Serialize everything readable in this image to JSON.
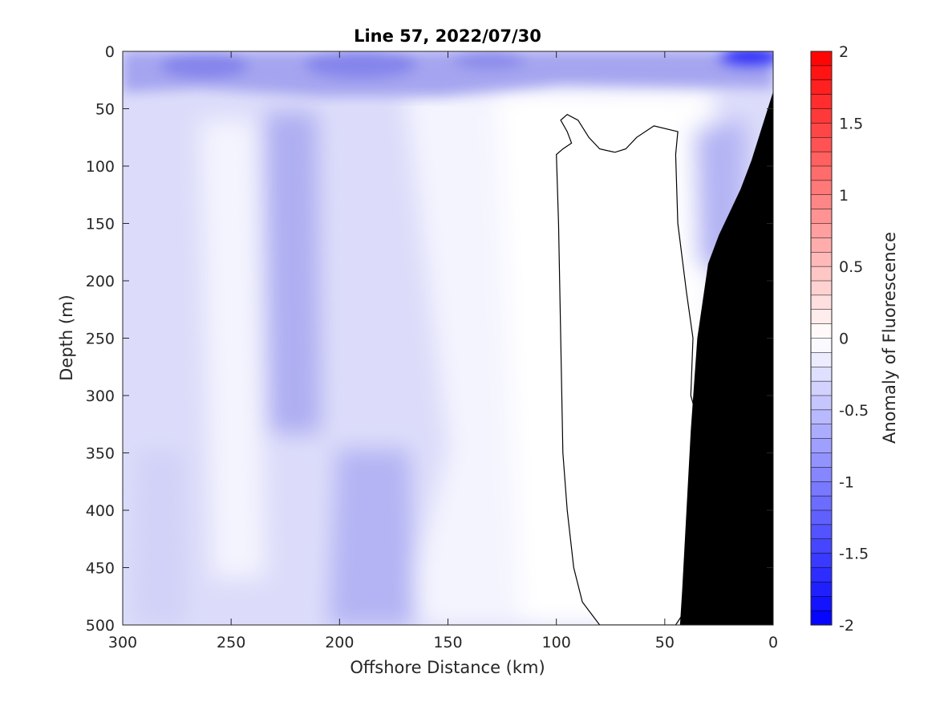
{
  "chart_data": {
    "type": "heatmap",
    "title": "Line 57, 2022/07/30",
    "xlabel": "Offshore Distance (km)",
    "ylabel": "Depth (m)",
    "colorbar_label": "Anomaly of Fluorescence",
    "xlim": [
      300,
      0
    ],
    "ylim": [
      0,
      500
    ],
    "x_reversed": true,
    "y_reversed": true,
    "clim": [
      -2,
      2
    ],
    "x_ticks": [
      300,
      250,
      200,
      150,
      100,
      50,
      0
    ],
    "x_tick_labels": [
      "300",
      "250",
      "200",
      "150",
      "100",
      "50",
      "0"
    ],
    "y_ticks": [
      0,
      50,
      100,
      150,
      200,
      250,
      300,
      350,
      400,
      450,
      500
    ],
    "y_tick_labels": [
      "0",
      "50",
      "100",
      "150",
      "200",
      "250",
      "300",
      "350",
      "400",
      "450",
      "500"
    ],
    "colorbar_ticks": [
      2,
      1.5,
      1,
      0.5,
      0,
      -0.5,
      -1,
      -1.5,
      -2
    ],
    "colorbar_tick_labels": [
      "2",
      "1.5",
      "1",
      "0.5",
      "0",
      "-0.5",
      "-1",
      "-1.5",
      "-2"
    ],
    "colorbar_levels": 40,
    "colormap": {
      "low": "#0000ff",
      "mid": "#ffffff",
      "high": "#ff0000"
    },
    "bathymetry_color": "#000000",
    "bathymetry": [
      [
        0,
        35
      ],
      [
        5,
        65
      ],
      [
        10,
        95
      ],
      [
        15,
        120
      ],
      [
        20,
        140
      ],
      [
        25,
        160
      ],
      [
        30,
        185
      ],
      [
        35,
        250
      ],
      [
        38,
        330
      ],
      [
        40,
        400
      ],
      [
        42,
        470
      ],
      [
        43,
        500
      ]
    ],
    "zero_contour": [
      [
        95,
        55
      ],
      [
        98,
        60
      ],
      [
        95,
        70
      ],
      [
        93,
        80
      ],
      [
        97,
        85
      ],
      [
        100,
        90
      ],
      [
        99,
        150
      ],
      [
        98,
        250
      ],
      [
        97,
        350
      ],
      [
        95,
        400
      ],
      [
        92,
        450
      ],
      [
        88,
        480
      ],
      [
        80,
        500
      ],
      [
        60,
        500
      ],
      [
        45,
        500
      ],
      [
        38,
        480
      ],
      [
        32,
        440
      ],
      [
        30,
        400
      ],
      [
        28,
        360
      ],
      [
        30,
        330
      ],
      [
        35,
        320
      ],
      [
        38,
        300
      ],
      [
        37,
        250
      ],
      [
        40,
        210
      ],
      [
        44,
        150
      ],
      [
        45,
        90
      ],
      [
        44,
        70
      ],
      [
        55,
        65
      ],
      [
        63,
        75
      ],
      [
        68,
        85
      ],
      [
        73,
        88
      ],
      [
        80,
        85
      ],
      [
        85,
        75
      ],
      [
        90,
        60
      ],
      [
        95,
        55
      ]
    ],
    "anomaly_samples": [
      [
        300,
        10,
        -0.5
      ],
      [
        250,
        10,
        -0.9
      ],
      [
        200,
        10,
        -0.8
      ],
      [
        150,
        10,
        -0.8
      ],
      [
        100,
        10,
        -0.6
      ],
      [
        50,
        10,
        -0.8
      ],
      [
        0,
        10,
        -1.8
      ],
      [
        250,
        200,
        -0.05
      ],
      [
        215,
        200,
        -0.6
      ],
      [
        140,
        200,
        0.0
      ],
      [
        70,
        200,
        0.0
      ],
      [
        20,
        120,
        -0.7
      ],
      [
        215,
        300,
        -0.7
      ],
      [
        180,
        450,
        -0.6
      ],
      [
        145,
        400,
        0.0
      ],
      [
        70,
        400,
        0.0
      ],
      [
        280,
        420,
        -0.3
      ],
      [
        240,
        420,
        -0.1
      ]
    ]
  }
}
